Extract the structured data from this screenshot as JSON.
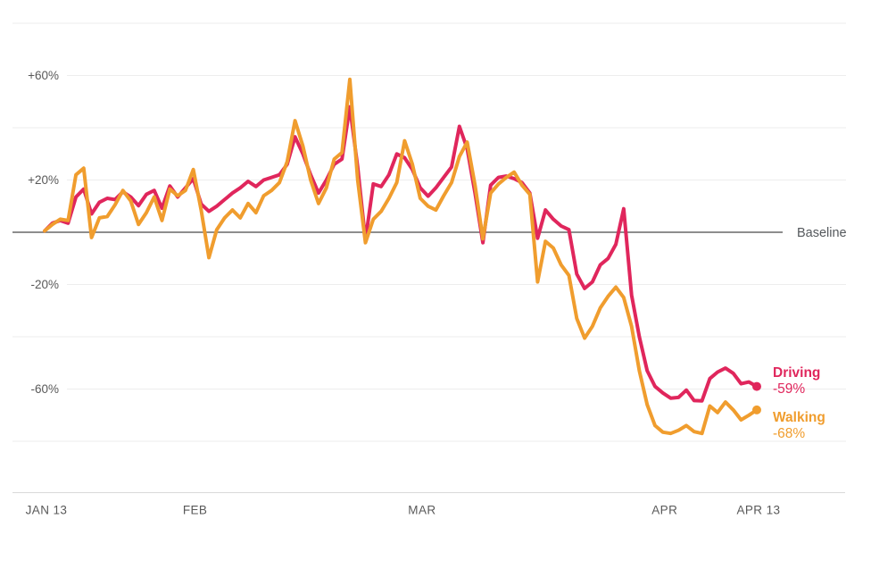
{
  "chart_data": {
    "type": "line",
    "ylim": [
      -80,
      80
    ],
    "x_axis": {
      "start_date": "JAN 13",
      "end_date": "APR 13",
      "ticks": [
        {
          "label": "JAN 13",
          "day": 0
        },
        {
          "label": "FEB",
          "day": 19
        },
        {
          "label": "MAR",
          "day": 48
        },
        {
          "label": "APR",
          "day": 79
        },
        {
          "label": "APR 13",
          "day": 91
        }
      ]
    },
    "y_axis": {
      "labeled_ticks": [
        {
          "label": "+60%",
          "value": 60
        },
        {
          "label": "+20%",
          "value": 20
        },
        {
          "label": "-20%",
          "value": -20
        },
        {
          "label": "-60%",
          "value": -60
        }
      ],
      "unlabeled_gridlines": [
        80,
        40,
        -40,
        -80
      ],
      "baseline_value": 0,
      "baseline_label": "Baseline"
    },
    "series": [
      {
        "name": "Driving",
        "color": "#e0265c",
        "end_label": "Driving",
        "end_value_label": "-59%",
        "end_value": -59,
        "values": [
          0.5,
          3.5,
          4.5,
          3.5,
          13.5,
          16.5,
          7,
          11.5,
          13,
          12.5,
          15.5,
          13.5,
          10.2,
          14.5,
          16,
          9.2,
          17.7,
          13.5,
          17,
          20.5,
          10.8,
          8,
          10,
          12.5,
          15,
          17,
          19.5,
          17.5,
          20,
          21,
          22,
          26,
          36.5,
          30,
          22,
          15,
          20,
          26,
          28,
          48,
          25,
          -3,
          18.5,
          17.5,
          22,
          30,
          28.5,
          24,
          17,
          13.8,
          17,
          21,
          25,
          40.5,
          32,
          15,
          -4,
          18,
          21,
          21.5,
          20.5,
          19,
          15,
          -2.3,
          8.5,
          5,
          2.4,
          1,
          -16,
          -21.5,
          -19,
          -12.5,
          -10,
          -4.6,
          9,
          -24,
          -40,
          -53,
          -59,
          -61.5,
          -63.5,
          -63.2,
          -60.4,
          -64.4,
          -64.5,
          -56,
          -53.5,
          -52,
          -54,
          -58,
          -57.3,
          -59
        ]
      },
      {
        "name": "Walking",
        "color": "#f09d2e",
        "end_label": "Walking",
        "end_value_label": "-68%",
        "end_value": -68,
        "values": [
          0.5,
          3,
          5,
          4.5,
          22,
          24.5,
          -2,
          5.5,
          6,
          10.5,
          16,
          12,
          3,
          7.5,
          13.5,
          4.5,
          16.5,
          14,
          16,
          24,
          8.5,
          -9.7,
          1,
          5.5,
          8.5,
          5.5,
          11,
          7.5,
          14,
          16,
          19,
          27,
          42.7,
          33,
          20,
          11,
          17,
          28,
          30.5,
          58.5,
          20,
          -4,
          5,
          8,
          13,
          19,
          35,
          26,
          13,
          10,
          8.5,
          14,
          19,
          29,
          34.5,
          18,
          -2.5,
          15,
          18.5,
          21,
          23,
          18,
          14.5,
          -19,
          -3.5,
          -6,
          -12.5,
          -16.5,
          -33,
          -40.5,
          -36,
          -29,
          -24.5,
          -21,
          -25,
          -36,
          -53,
          -66,
          -74,
          -76.5,
          -77,
          -75.8,
          -74,
          -76.3,
          -77,
          -66.5,
          -69,
          -65,
          -68,
          -71.8,
          -70,
          -68
        ]
      }
    ],
    "colors": {
      "grid": "#ededed",
      "baseline": "#7d7d7d",
      "axis": "#d9d9d9",
      "tick_text": "#595959",
      "baseline_text": "#54585c"
    }
  }
}
